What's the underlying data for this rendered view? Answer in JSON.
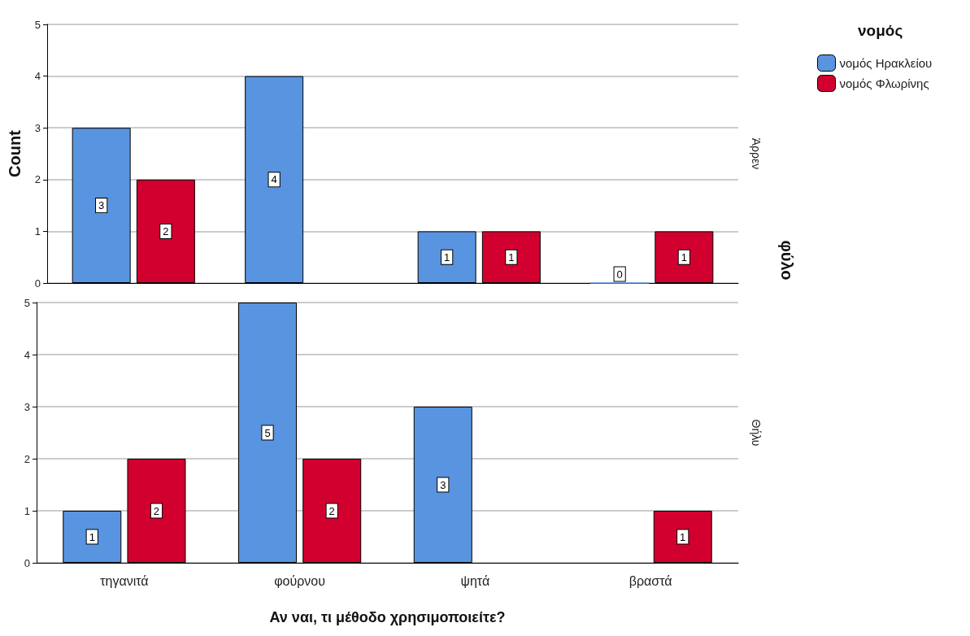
{
  "chart_data": [
    {
      "type": "bar",
      "ylabel": "Count",
      "y2label": "Άρρεν",
      "legend_title": "νομός",
      "legend": "top right",
      "annotations": [
        "φύλο"
      ],
      "categories": [
        null,
        null,
        null,
        null
      ],
      "tick_labels": "y",
      "ylim": [
        0,
        5
      ],
      "yticks": [
        0,
        1,
        2,
        3,
        4,
        5
      ],
      "grid": "y",
      "data_labels": true,
      "series": [
        {
          "name": "νομός Ηρακλείου",
          "color": "#5894e0",
          "values": [
            3,
            4,
            1,
            0
          ]
        },
        {
          "name": "νομός Φλωρίνης",
          "color": "#d2002e",
          "values": [
            2,
            null,
            1,
            1
          ]
        }
      ]
    },
    {
      "type": "bar",
      "xlabel": "Αν ναι, τι μέθοδο χρησιμοποιείτε?",
      "y2label": "Θήλυ",
      "categories": [
        "τηγανιτά",
        "φούρνου",
        "ψητά",
        "βραστά"
      ],
      "ylim": [
        0,
        5
      ],
      "yticks": [
        0,
        1,
        2,
        3,
        4,
        5
      ],
      "grid": "y",
      "data_labels": true,
      "series": [
        {
          "color": "#5894e0",
          "values": [
            1,
            5,
            3,
            null
          ]
        },
        {
          "color": "#d2002e",
          "values": [
            2,
            2,
            null,
            1
          ]
        }
      ]
    }
  ]
}
